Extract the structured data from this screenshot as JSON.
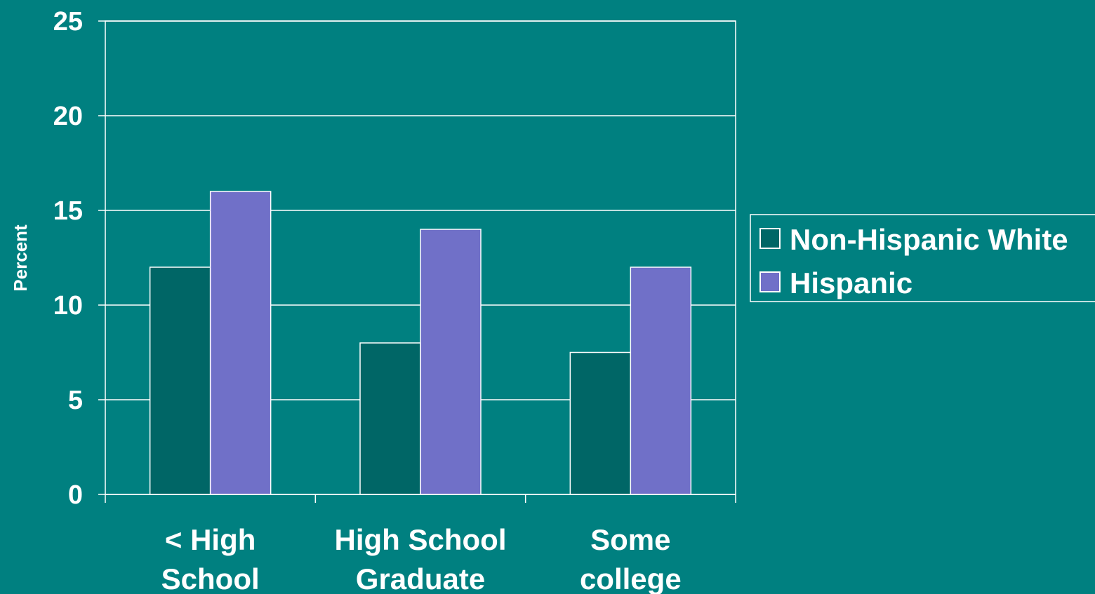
{
  "chart_data": {
    "type": "bar",
    "title": "",
    "xlabel": "",
    "ylabel": "Percent",
    "ylim": [
      0,
      25
    ],
    "yticks": [
      0,
      5,
      10,
      15,
      20,
      25
    ],
    "grid": true,
    "legend_position": "right",
    "categories": [
      [
        "< High",
        "School"
      ],
      [
        "High School",
        "Graduate"
      ],
      [
        "Some",
        "college"
      ]
    ],
    "series": [
      {
        "name": "Non-Hispanic White",
        "color": "#006666",
        "values": [
          12,
          8,
          7.5
        ]
      },
      {
        "name": "Hispanic",
        "color": "#7070C8",
        "values": [
          16,
          14,
          12
        ]
      }
    ],
    "background_color": "#008080",
    "axis_color": "#ffffff"
  }
}
